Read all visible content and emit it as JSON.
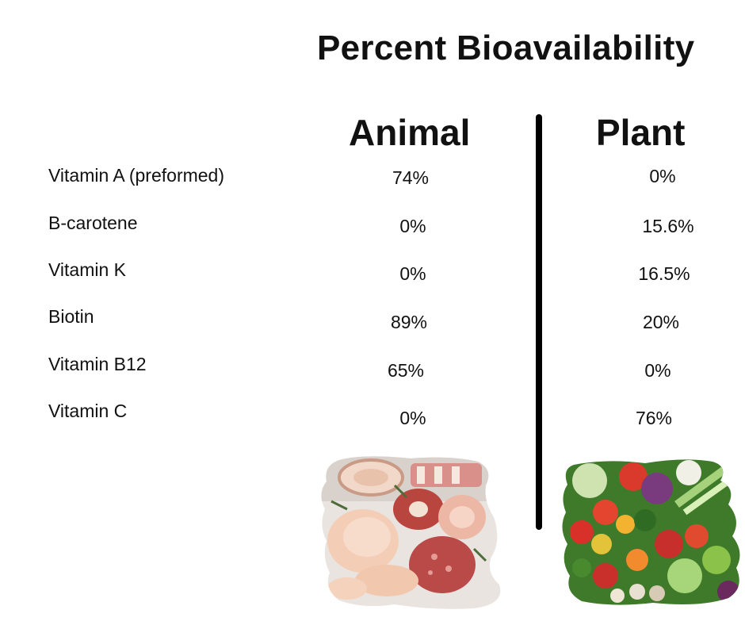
{
  "title": "Percent Bioavailability",
  "columns": {
    "animal": "Animal",
    "plant": "Plant"
  },
  "rows": [
    {
      "label": "Vitamin A (preformed)",
      "animal": "74%",
      "plant": "0%"
    },
    {
      "label": "B-carotene",
      "animal": "0%",
      "plant": "15.6%"
    },
    {
      "label": "Vitamin K",
      "animal": "0%",
      "plant": "16.5%"
    },
    {
      "label": "Biotin",
      "animal": "89%",
      "plant": "20%"
    },
    {
      "label": "Vitamin B12",
      "animal": "65%",
      "plant": "0%"
    },
    {
      "label": "Vitamin C",
      "animal": "0%",
      "plant": "76%"
    }
  ],
  "images": {
    "animal": "meat-photo-icon",
    "plant": "vegetables-photo-icon"
  }
}
